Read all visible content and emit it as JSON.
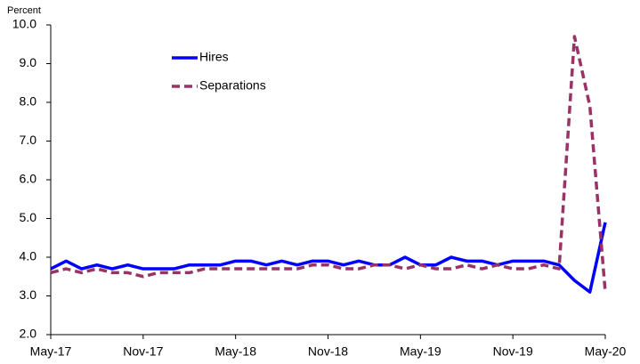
{
  "chart_data": {
    "type": "line",
    "y_label": "Percent",
    "categories": [
      "May-17",
      null,
      null,
      null,
      null,
      null,
      "Nov-17",
      null,
      null,
      null,
      null,
      null,
      "May-18",
      null,
      null,
      null,
      null,
      null,
      "Nov-18",
      null,
      null,
      null,
      null,
      null,
      "May-19",
      null,
      null,
      null,
      null,
      null,
      "Nov-19",
      null,
      null,
      null,
      null,
      null,
      "May-20"
    ],
    "series": [
      {
        "name": "Hires",
        "color": "#0000ff",
        "dashed": false,
        "values": [
          3.7,
          3.9,
          3.7,
          3.8,
          3.7,
          3.8,
          3.7,
          3.7,
          3.7,
          3.8,
          3.8,
          3.8,
          3.9,
          3.9,
          3.8,
          3.9,
          3.8,
          3.9,
          3.9,
          3.8,
          3.9,
          3.8,
          3.8,
          4.0,
          3.8,
          3.8,
          4.0,
          3.9,
          3.9,
          3.8,
          3.9,
          3.9,
          3.9,
          3.8,
          3.4,
          3.1,
          4.9
        ]
      },
      {
        "name": "Separations",
        "color": "#993366",
        "dashed": true,
        "values": [
          3.6,
          3.7,
          3.6,
          3.7,
          3.6,
          3.6,
          3.5,
          3.6,
          3.6,
          3.6,
          3.7,
          3.7,
          3.7,
          3.7,
          3.7,
          3.7,
          3.7,
          3.8,
          3.8,
          3.7,
          3.7,
          3.8,
          3.8,
          3.7,
          3.8,
          3.7,
          3.7,
          3.8,
          3.7,
          3.8,
          3.7,
          3.7,
          3.8,
          3.7,
          9.7,
          7.9,
          3.1
        ]
      }
    ],
    "ylim": [
      2,
      10
    ],
    "yticks": [
      {
        "value": 2,
        "label": "2.0"
      },
      {
        "value": 3,
        "label": "3.0"
      },
      {
        "value": 4,
        "label": "4.0"
      },
      {
        "value": 5,
        "label": "5.0"
      },
      {
        "value": 6,
        "label": "6.0"
      },
      {
        "value": 7,
        "label": "7.0"
      },
      {
        "value": 8,
        "label": "8.0"
      },
      {
        "value": 9,
        "label": "9.0"
      },
      {
        "value": 10,
        "label": "10.0"
      }
    ],
    "grid": false
  }
}
